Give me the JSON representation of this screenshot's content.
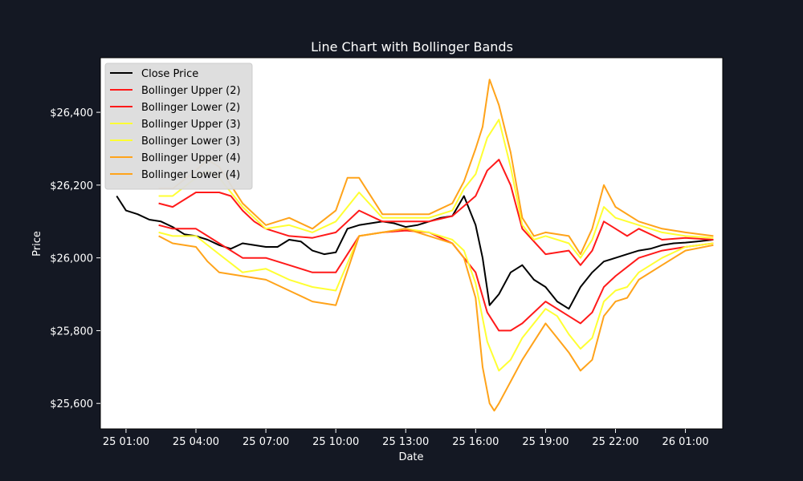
{
  "chart_data": {
    "type": "line",
    "title": "Line Chart with Bollinger Bands",
    "xlabel": "Date",
    "ylabel": "Price",
    "x_ticks": [
      "25 01:00",
      "25 04:00",
      "25 07:00",
      "25 10:00",
      "25 13:00",
      "25 16:00",
      "25 19:00",
      "25 22:00",
      "26 01:00"
    ],
    "y_ticks": [
      "$25,600",
      "$25,800",
      "$26,000",
      "$26,200",
      "$26,400"
    ],
    "xlim_hours": [
      23.9,
      50.6
    ],
    "ylim": [
      25530,
      26550
    ],
    "legend": "top-left",
    "grid": false,
    "background": "#141823",
    "plot_background": "#ffffff",
    "series": [
      {
        "name": "Close Price",
        "color": "#000000",
        "x": [
          24.6,
          25.0,
          25.5,
          26.0,
          26.5,
          27.0,
          27.5,
          28.0,
          28.5,
          29.0,
          29.5,
          30.0,
          30.5,
          31.0,
          31.5,
          32.0,
          32.5,
          33.0,
          33.5,
          34.0,
          34.5,
          35.0,
          35.5,
          36.0,
          36.5,
          37.0,
          37.5,
          38.0,
          38.5,
          39.0,
          39.5,
          40.0,
          40.3,
          40.6,
          41.0,
          41.5,
          42.0,
          42.5,
          43.0,
          43.5,
          44.0,
          44.5,
          45.0,
          45.5,
          46.0,
          46.5,
          47.0,
          47.5,
          48.0,
          48.5,
          49.0,
          49.5,
          50.2
        ],
        "y": [
          26170,
          26130,
          26120,
          26105,
          26100,
          26085,
          26065,
          26060,
          26050,
          26035,
          26025,
          26040,
          26035,
          26030,
          26030,
          26050,
          26045,
          26020,
          26010,
          26015,
          26080,
          26090,
          26095,
          26100,
          26095,
          26085,
          26090,
          26100,
          26110,
          26115,
          26170,
          26090,
          26000,
          25870,
          25900,
          25960,
          25980,
          25940,
          25920,
          25880,
          25860,
          25920,
          25960,
          25990,
          26000,
          26010,
          26020,
          26025,
          26035,
          26040,
          26042,
          26045,
          26050
        ]
      },
      {
        "name": "Bollinger Upper (2)",
        "color": "#ff1a1a",
        "x": [
          26.4,
          27.0,
          28.0,
          29.0,
          29.5,
          30.0,
          30.5,
          31.0,
          32.0,
          33.0,
          34.0,
          34.5,
          35.0,
          36.0,
          37.0,
          38.0,
          39.0,
          40.0,
          40.5,
          41.0,
          41.5,
          42.0,
          43.0,
          44.0,
          44.5,
          45.0,
          45.5,
          46.0,
          46.5,
          47.0,
          48.0,
          49.0,
          50.2
        ],
        "y": [
          26150,
          26140,
          26180,
          26180,
          26170,
          26130,
          26100,
          26080,
          26060,
          26055,
          26070,
          26100,
          26130,
          26100,
          26100,
          26100,
          26115,
          26170,
          26240,
          26270,
          26200,
          26080,
          26010,
          26020,
          25980,
          26020,
          26100,
          26080,
          26060,
          26080,
          26050,
          26055,
          26050
        ]
      },
      {
        "name": "Bollinger Lower (2)",
        "color": "#ff1a1a",
        "x": [
          26.4,
          27.0,
          28.0,
          29.0,
          30.0,
          31.0,
          32.0,
          33.0,
          34.0,
          35.0,
          36.0,
          37.0,
          38.0,
          39.0,
          40.0,
          40.5,
          41.0,
          41.5,
          42.0,
          43.0,
          44.0,
          44.5,
          45.0,
          45.5,
          46.0,
          47.0,
          48.0,
          49.0,
          50.2
        ],
        "y": [
          26090,
          26080,
          26080,
          26040,
          26000,
          26000,
          25980,
          25960,
          25960,
          26060,
          26070,
          26075,
          26070,
          26040,
          25960,
          25850,
          25800,
          25800,
          25820,
          25880,
          25840,
          25820,
          25850,
          25920,
          25950,
          26000,
          26020,
          26030,
          26040
        ]
      },
      {
        "name": "Bollinger Upper (3)",
        "color": "#ffff33",
        "x": [
          26.4,
          27.0,
          28.0,
          28.5,
          29.0,
          30.0,
          31.0,
          32.0,
          33.0,
          34.0,
          35.0,
          36.0,
          37.0,
          38.0,
          39.0,
          39.5,
          40.0,
          40.5,
          41.0,
          41.5,
          42.0,
          42.5,
          43.0,
          44.0,
          44.5,
          45.0,
          45.5,
          46.0,
          47.0,
          48.0,
          49.0,
          50.2
        ],
        "y": [
          26170,
          26170,
          26220,
          26240,
          26220,
          26140,
          26080,
          26090,
          26070,
          26100,
          26180,
          26110,
          26110,
          26110,
          26130,
          26190,
          26230,
          26330,
          26380,
          26250,
          26090,
          26050,
          26060,
          26040,
          26000,
          26050,
          26140,
          26110,
          26090,
          26070,
          26060,
          26055
        ]
      },
      {
        "name": "Bollinger Lower (3)",
        "color": "#ffff33",
        "x": [
          26.4,
          27.0,
          28.0,
          29.0,
          30.0,
          31.0,
          32.0,
          33.0,
          34.0,
          35.0,
          36.0,
          37.0,
          38.0,
          39.0,
          39.5,
          40.0,
          40.5,
          41.0,
          41.5,
          42.0,
          43.0,
          43.5,
          44.0,
          44.5,
          45.0,
          45.5,
          46.0,
          46.5,
          47.0,
          48.0,
          49.0,
          50.2
        ],
        "y": [
          26070,
          26060,
          26060,
          26010,
          25960,
          25970,
          25940,
          25920,
          25910,
          26060,
          26070,
          26080,
          26070,
          26050,
          26020,
          25930,
          25770,
          25690,
          25720,
          25780,
          25860,
          25840,
          25790,
          25750,
          25780,
          25880,
          25910,
          25920,
          25960,
          26000,
          26030,
          26040
        ]
      },
      {
        "name": "Bollinger Upper (4)",
        "color": "#ffa31a",
        "x": [
          26.4,
          27.0,
          28.0,
          28.5,
          29.0,
          29.5,
          30.0,
          31.0,
          32.0,
          33.0,
          34.0,
          34.5,
          35.0,
          36.0,
          37.0,
          38.0,
          39.0,
          39.5,
          40.0,
          40.3,
          40.6,
          41.0,
          41.5,
          42.0,
          42.5,
          43.0,
          44.0,
          44.5,
          45.0,
          45.5,
          46.0,
          47.0,
          48.0,
          49.0,
          50.2
        ],
        "y": [
          26190,
          26190,
          26240,
          26270,
          26250,
          26200,
          26150,
          26090,
          26110,
          26080,
          26130,
          26220,
          26220,
          26120,
          26120,
          26120,
          26150,
          26210,
          26300,
          26360,
          26490,
          26420,
          26290,
          26110,
          26060,
          26070,
          26060,
          26010,
          26080,
          26200,
          26140,
          26100,
          26080,
          26070,
          26060
        ]
      },
      {
        "name": "Bollinger Lower (4)",
        "color": "#ffa31a",
        "x": [
          26.4,
          27.0,
          28.0,
          28.5,
          29.0,
          30.0,
          31.0,
          32.0,
          33.0,
          34.0,
          35.0,
          36.0,
          37.0,
          38.0,
          39.0,
          39.5,
          40.0,
          40.3,
          40.6,
          40.8,
          41.0,
          41.5,
          42.0,
          43.0,
          43.5,
          44.0,
          44.5,
          45.0,
          45.5,
          46.0,
          46.5,
          47.0,
          48.0,
          49.0,
          50.2
        ],
        "y": [
          26060,
          26040,
          26030,
          25990,
          25960,
          25950,
          25940,
          25910,
          25880,
          25870,
          26060,
          26070,
          26080,
          26060,
          26040,
          26000,
          25890,
          25700,
          25600,
          25580,
          25600,
          25660,
          25720,
          25820,
          25780,
          25740,
          25690,
          25720,
          25840,
          25880,
          25890,
          25940,
          25980,
          26020,
          26035
        ]
      }
    ]
  }
}
